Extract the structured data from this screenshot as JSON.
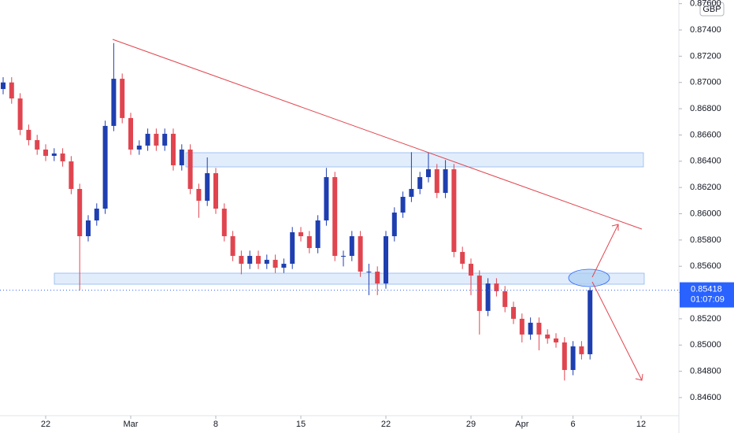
{
  "chart_data": {
    "type": "candlestick",
    "currency": "GBP",
    "price_label": "0.85418",
    "countdown": "01:07:09",
    "up_color": "#1f3fb0",
    "down_color": "#e0454f",
    "grid": false,
    "xlim": [
      -2.685,
      37.222
    ],
    "xticks": [
      {
        "value": 0,
        "label": "22"
      },
      {
        "value": 5,
        "label": "Mar"
      },
      {
        "value": 10,
        "label": "8"
      },
      {
        "value": 15,
        "label": "15"
      },
      {
        "value": 20,
        "label": "22"
      },
      {
        "value": 25,
        "label": "29"
      },
      {
        "value": 28,
        "label": "Apr"
      },
      {
        "value": 31,
        "label": "6"
      },
      {
        "value": 35,
        "label": "12"
      }
    ],
    "ylim": [
      0.84462,
      0.87628
    ],
    "yticks": [
      {
        "value": 0.846,
        "label": "0.84600"
      },
      {
        "value": 0.848,
        "label": "0.84800"
      },
      {
        "value": 0.85,
        "label": "0.85000"
      },
      {
        "value": 0.852,
        "label": "0.85200"
      },
      {
        "value": 0.854,
        "label": "0.85400"
      },
      {
        "value": 0.856,
        "label": "0.85600"
      },
      {
        "value": 0.858,
        "label": "0.85800"
      },
      {
        "value": 0.86,
        "label": "0.86000"
      },
      {
        "value": 0.862,
        "label": "0.86200"
      },
      {
        "value": 0.864,
        "label": "0.86400"
      },
      {
        "value": 0.866,
        "label": "0.86600"
      },
      {
        "value": 0.868,
        "label": "0.86800"
      },
      {
        "value": 0.87,
        "label": "0.87000"
      },
      {
        "value": 0.872,
        "label": "0.87200"
      },
      {
        "value": 0.874,
        "label": "0.87400"
      },
      {
        "value": 0.876,
        "label": "0.87600"
      }
    ],
    "x": [
      -2.5,
      -2,
      -1.5,
      -1,
      -0.5,
      0,
      0.5,
      1,
      1.5,
      2,
      2.5,
      3,
      3.5,
      4,
      4.5,
      5,
      5.5,
      6,
      6.5,
      7,
      7.5,
      8,
      8.5,
      9,
      9.5,
      10,
      10.5,
      11,
      11.5,
      12,
      12.5,
      13,
      13.5,
      14,
      14.5,
      15,
      15.5,
      16,
      16.5,
      17,
      17.5,
      18,
      18.5,
      19,
      19.5,
      20,
      20.5,
      21,
      21.5,
      22,
      22.5,
      23,
      23.5,
      24,
      24.5,
      25,
      25.5,
      26,
      26.5,
      27,
      27.5,
      28,
      28.5,
      29,
      29.5,
      30,
      30.5,
      31,
      31.5,
      32
    ],
    "open": [
      0.8695,
      0.87,
      0.86878,
      0.86639,
      0.86561,
      0.86489,
      0.86441,
      0.86459,
      0.86399,
      0.86189,
      0.85829,
      0.85949,
      0.86039,
      0.86669,
      0.87028,
      0.86729,
      0.86489,
      0.86519,
      0.86609,
      0.86519,
      0.86609,
      0.86369,
      0.86489,
      0.86189,
      0.86099,
      0.86309,
      0.86039,
      0.85829,
      0.85679,
      0.85619,
      0.85679,
      0.85619,
      0.85649,
      0.85589,
      0.85619,
      0.85859,
      0.85829,
      0.85739,
      0.85949,
      0.86279,
      0.85679,
      0.85679,
      0.85829,
      0.85559,
      0.85559,
      0.85469,
      0.85829,
      0.86009,
      0.86129,
      0.86189,
      0.86279,
      0.86339,
      0.86159,
      0.86339,
      0.85709,
      0.85619,
      0.85529,
      0.8526,
      0.85469,
      0.8541,
      0.8529,
      0.852,
      0.8508,
      0.8517,
      0.8508,
      0.8505,
      0.8502,
      0.8481,
      0.8499,
      0.8493
    ],
    "high": [
      0.8704,
      0.8704,
      0.86918,
      0.86679,
      0.86601,
      0.86529,
      0.86499,
      0.86499,
      0.86439,
      0.86229,
      0.85989,
      0.86079,
      0.86709,
      0.873,
      0.87068,
      0.86769,
      0.86559,
      0.86649,
      0.86649,
      0.86649,
      0.86649,
      0.86529,
      0.86529,
      0.86229,
      0.86429,
      0.86349,
      0.86079,
      0.85869,
      0.85719,
      0.85719,
      0.85719,
      0.85689,
      0.85689,
      0.85659,
      0.85899,
      0.85899,
      0.85869,
      0.85989,
      0.86349,
      0.86319,
      0.85719,
      0.85869,
      0.85869,
      0.85619,
      0.85599,
      0.85869,
      0.86049,
      0.86169,
      0.86469,
      0.86319,
      0.86469,
      0.86379,
      0.86409,
      0.86379,
      0.85749,
      0.85659,
      0.85569,
      0.85509,
      0.85509,
      0.8545,
      0.8533,
      0.8524,
      0.8521,
      0.8521,
      0.8512,
      0.8509,
      0.8506,
      0.8503,
      0.8503,
      0.8544
    ],
    "low": [
      0.8691,
      0.86838,
      0.86599,
      0.86521,
      0.86449,
      0.86401,
      0.86401,
      0.86359,
      0.86149,
      0.85418,
      0.85789,
      0.85909,
      0.85999,
      0.86629,
      0.86689,
      0.86449,
      0.86449,
      0.86479,
      0.86479,
      0.86479,
      0.86329,
      0.86329,
      0.86149,
      0.85969,
      0.86059,
      0.85999,
      0.85789,
      0.85639,
      0.85539,
      0.85579,
      0.85579,
      0.85579,
      0.85549,
      0.85549,
      0.85579,
      0.85789,
      0.85699,
      0.85699,
      0.85909,
      0.85639,
      0.85599,
      0.85639,
      0.85519,
      0.8538,
      0.8538,
      0.85429,
      0.85789,
      0.85969,
      0.86089,
      0.86149,
      0.86239,
      0.86119,
      0.86119,
      0.85669,
      0.85579,
      0.8538,
      0.8508,
      0.8522,
      0.8537,
      0.8525,
      0.8516,
      0.8502,
      0.8504,
      0.8496,
      0.8501,
      0.8498,
      0.8473,
      0.8477,
      0.8489,
      0.8489
    ],
    "close": [
      0.87,
      0.86878,
      0.86639,
      0.86561,
      0.86489,
      0.86441,
      0.86459,
      0.86399,
      0.86189,
      0.85829,
      0.85949,
      0.86039,
      0.86669,
      0.87028,
      0.86729,
      0.86489,
      0.86519,
      0.86609,
      0.86519,
      0.86609,
      0.86369,
      0.86489,
      0.86189,
      0.86099,
      0.86309,
      0.86039,
      0.85829,
      0.85679,
      0.85619,
      0.85679,
      0.85619,
      0.85649,
      0.85589,
      0.85619,
      0.85859,
      0.85829,
      0.85739,
      0.85949,
      0.86279,
      0.85679,
      0.85679,
      0.85829,
      0.85559,
      0.85559,
      0.85469,
      0.85829,
      0.86009,
      0.86129,
      0.86189,
      0.86279,
      0.86339,
      0.86159,
      0.86339,
      0.85709,
      0.85619,
      0.85529,
      0.8526,
      0.85469,
      0.8541,
      0.8529,
      0.852,
      0.8508,
      0.8517,
      0.8508,
      0.8505,
      0.8502,
      0.8481,
      0.8499,
      0.8493,
      0.85418
    ]
  }
}
